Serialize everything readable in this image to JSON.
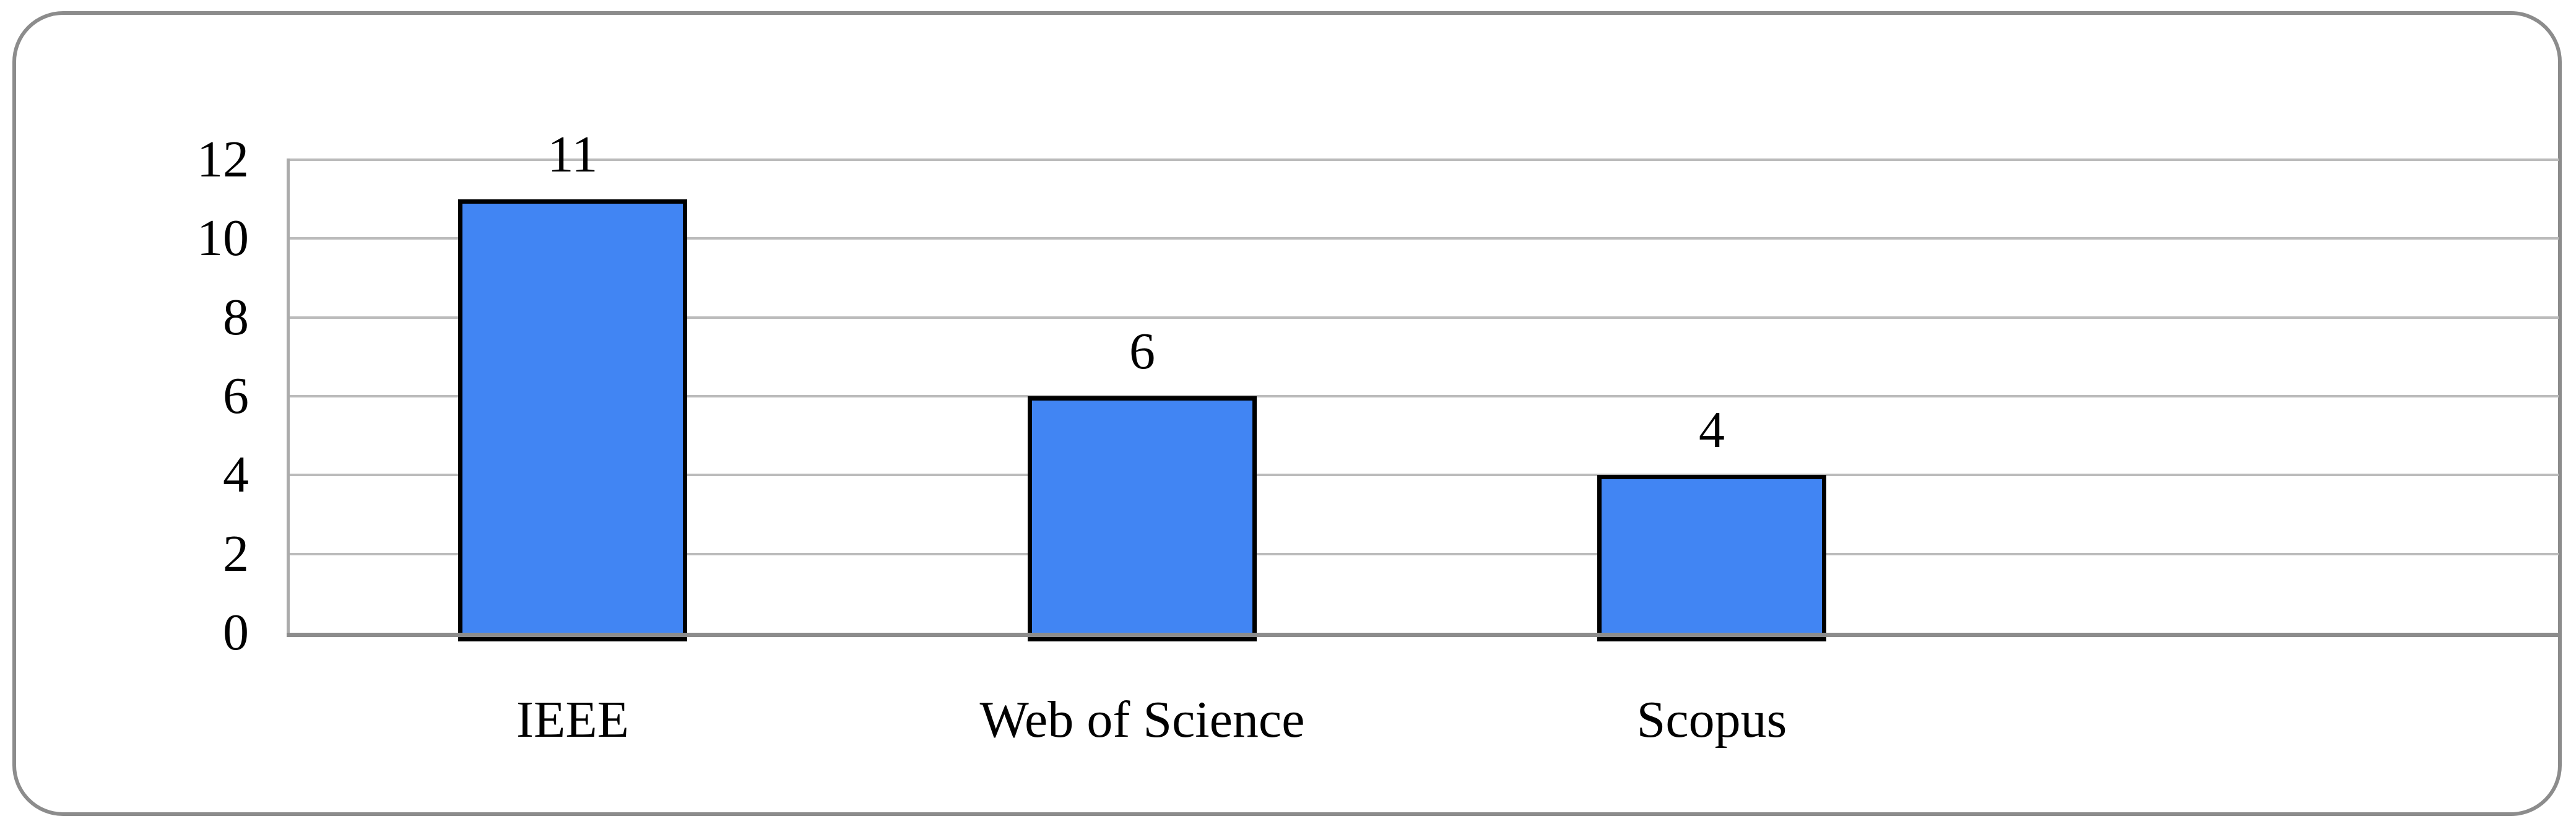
{
  "chart_data": {
    "type": "bar",
    "categories": [
      "IEEE",
      "Web of Science",
      "Scopus"
    ],
    "values": [
      11,
      6,
      4
    ],
    "data_labels": [
      "11",
      "6",
      "4"
    ],
    "title": "",
    "xlabel": "",
    "ylabel": "",
    "ylim": [
      0,
      12
    ],
    "yticks": [
      0,
      2,
      4,
      6,
      8,
      10,
      12
    ],
    "ytick_labels": [
      "0",
      "2",
      "4",
      "6",
      "8",
      "10",
      "12"
    ],
    "grid": "horizontal-major",
    "legend": "none",
    "colors": {
      "bar_fill": "#4185F3",
      "bar_border": "#000000",
      "gridline": "#BBBBBB",
      "axis_line": "#8C8C8C",
      "frame_border": "#8C8C8C",
      "text": "#000000",
      "background": "#FFFFFF"
    }
  }
}
